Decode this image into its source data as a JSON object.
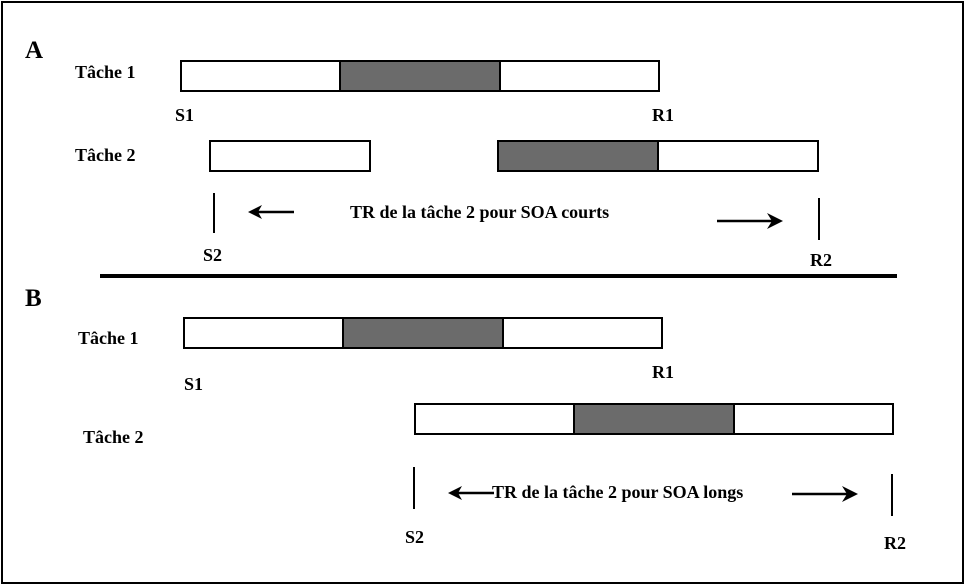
{
  "panel_a": {
    "letter": "A",
    "task1_label": "Tâche 1",
    "task2_label": "Tâche 2",
    "s1": "S1",
    "r1": "R1",
    "s2": "S2",
    "r2": "R2",
    "caption": "TR de la tâche 2 pour  SOA courts"
  },
  "panel_b": {
    "letter": "B",
    "task1_label": "Tâche 1",
    "task2_label": "Tâche 2",
    "s1": "S1",
    "r1": "R1",
    "s2": "S2",
    "r2": "R2",
    "caption": "TR de la tâche 2 pour SOA  longs"
  },
  "colors": {
    "stage_fill": "#ffffff",
    "bottleneck_fill": "#6b6b6b",
    "stroke": "#000000"
  }
}
